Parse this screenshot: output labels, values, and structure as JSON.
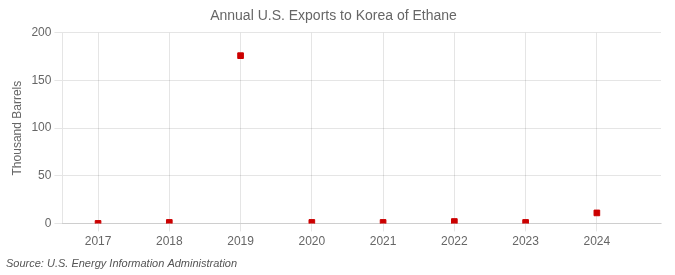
{
  "chart_data": {
    "type": "scatter",
    "title": "Annual U.S. Exports to Korea of Ethane",
    "ylabel": "Thousand Barrels",
    "annotations": [
      "Source: U.S. Energy Information Administration"
    ],
    "x": [
      2017,
      2018,
      2019,
      2020,
      2021,
      2022,
      2023,
      2024
    ],
    "values": [
      0,
      1,
      176,
      1,
      1,
      2,
      1,
      11
    ],
    "color": "#cc0000",
    "marker": "square",
    "xlim": [
      2016.5,
      2024.9
    ],
    "xticks": [
      2017,
      2018,
      2019,
      2020,
      2021,
      2022,
      2023,
      2024
    ],
    "ylim": [
      0,
      200
    ],
    "yticks": [
      0,
      50,
      100,
      150,
      200
    ],
    "grid": true
  }
}
